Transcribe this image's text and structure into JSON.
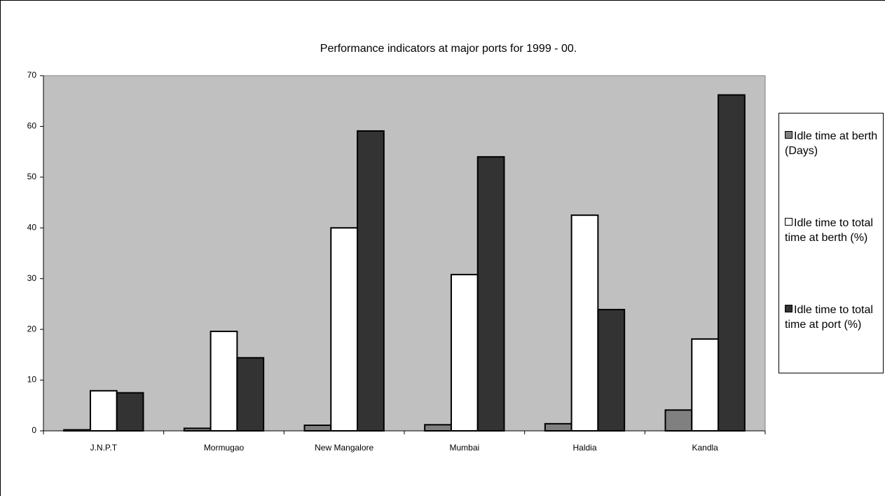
{
  "chart_data": {
    "type": "bar",
    "title": "Performance indicators at major ports for 1999 - 00.",
    "categories": [
      "J.N.P.T",
      "Mormugao",
      "New Mangalore",
      "Mumbai",
      "Haldia",
      "Kandla"
    ],
    "series": [
      {
        "name": "Idle time at berth (Days)",
        "color": "#808080",
        "values": [
          0.2,
          0.5,
          1.1,
          1.2,
          1.4,
          4.1
        ]
      },
      {
        "name": "Idle time to total time at berth (%)",
        "color": "#ffffff",
        "values": [
          7.9,
          19.6,
          40,
          30.8,
          42.5,
          18.1
        ]
      },
      {
        "name": "Idle time to total time at port (%)",
        "color": "#333333",
        "values": [
          7.5,
          14.4,
          59.1,
          54,
          23.9,
          66.2
        ]
      }
    ],
    "ylim": [
      0,
      70
    ],
    "yticks": [
      0,
      10,
      20,
      30,
      40,
      50,
      60,
      70
    ],
    "grid": false,
    "legend": "right"
  }
}
